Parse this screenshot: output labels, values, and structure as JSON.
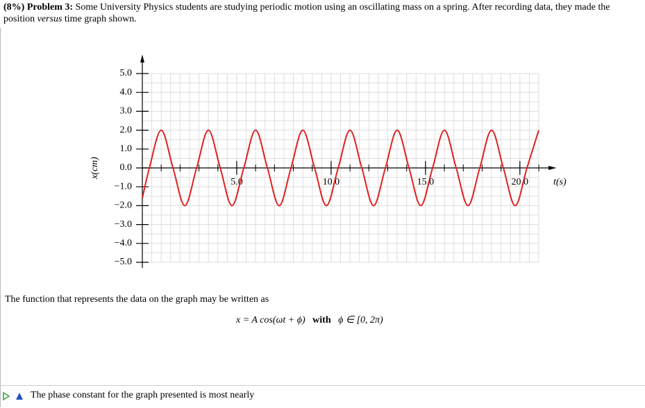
{
  "problem": {
    "label": "(8%) Problem 3:",
    "text_before": "Some University Physics students are studying periodic motion using an oscillating mass on a spring. After recording data, they made the position ",
    "emphasis": "versus",
    "text_after": " time graph shown."
  },
  "chart_data": {
    "type": "line",
    "color": "#e02020",
    "x": [
      0,
      0.375,
      1.0,
      1.625,
      2.25,
      2.875,
      3.5,
      4.125,
      4.75,
      5.375,
      6.0,
      6.625,
      7.25,
      7.875,
      8.5,
      9.125,
      9.75,
      10.375,
      11.0,
      11.625,
      12.25,
      12.875,
      13.5,
      14.125,
      14.75,
      15.375,
      16.0,
      16.625,
      17.25,
      17.875,
      18.5,
      19.125,
      19.75,
      20.375,
      21.0
    ],
    "values": [
      -1.6,
      0,
      2,
      0,
      -2,
      0,
      2,
      0,
      -2,
      0,
      2,
      0,
      -2,
      0,
      2,
      0,
      -2,
      0,
      2,
      0,
      -2,
      0,
      2,
      0,
      -2,
      0,
      2,
      0,
      -2,
      0,
      2,
      0,
      -2,
      0,
      2
    ],
    "xlim": [
      0,
      21
    ],
    "ylim": [
      -5,
      5
    ],
    "xticks": [
      {
        "value": 5,
        "label": "5.0"
      },
      {
        "value": 10,
        "label": "10.0"
      },
      {
        "value": 15,
        "label": "15.0"
      },
      {
        "value": 20,
        "label": "20.0"
      }
    ],
    "yticks": [
      {
        "value": 5,
        "label": "5.0"
      },
      {
        "value": 4,
        "label": "4.0"
      },
      {
        "value": 3,
        "label": "3.0"
      },
      {
        "value": 2,
        "label": "2.0"
      },
      {
        "value": 1,
        "label": "1.0"
      },
      {
        "value": 0,
        "label": "0.0"
      },
      {
        "value": -1,
        "label": "−1.0"
      },
      {
        "value": -2,
        "label": "−2.0"
      },
      {
        "value": -3,
        "label": "−3.0"
      },
      {
        "value": -4,
        "label": "−4.0"
      },
      {
        "value": -5,
        "label": "−5.0"
      }
    ],
    "x_label": "t(s)",
    "y_label": "x(cm)",
    "grid": true
  },
  "statement": "The function that represents the data on the graph may be written as",
  "formula": {
    "lhs": "x = A cos(ωt + ϕ)",
    "connector": "with",
    "rhs": "ϕ ∈ [0, 2π)"
  },
  "question": "The phase constant for the graph presented is most nearly"
}
